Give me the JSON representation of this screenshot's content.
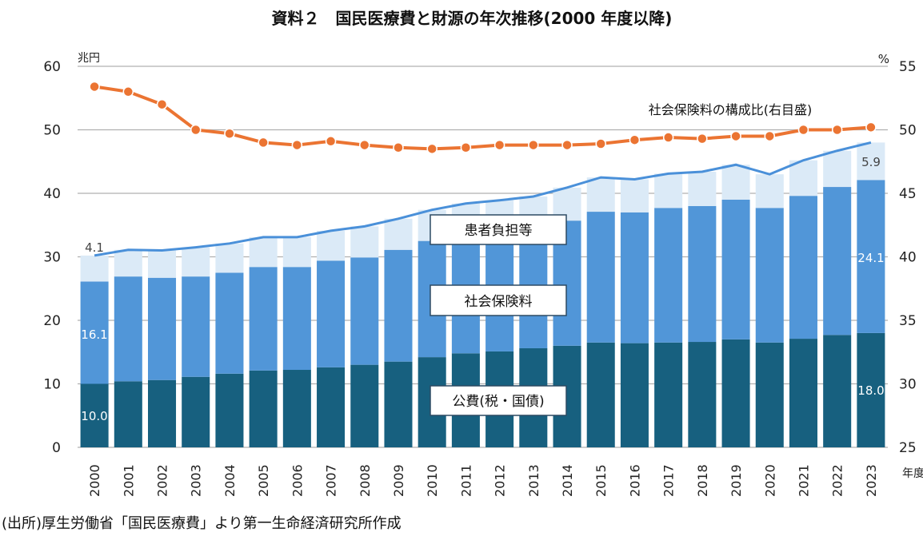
{
  "chart_data": {
    "type": "bar",
    "stacked": true,
    "title": "資料２　国民医療費と財源の年次推移(2000 年度以降)",
    "ylabel_left": "兆円",
    "ylabel_right": "%",
    "xlabel": "年度",
    "ylim_left": [
      0,
      60
    ],
    "ylim_right": [
      25,
      55
    ],
    "yticks_left": [
      "0",
      "10",
      "20",
      "30",
      "40",
      "50",
      "60"
    ],
    "yticks_right": [
      "25",
      "30",
      "35",
      "40",
      "45",
      "50",
      "55"
    ],
    "grid": true,
    "categories": [
      "2000",
      "2001",
      "2002",
      "2003",
      "2004",
      "2005",
      "2006",
      "2007",
      "2008",
      "2009",
      "2010",
      "2011",
      "2012",
      "2013",
      "2014",
      "2015",
      "2016",
      "2017",
      "2018",
      "2019",
      "2020",
      "2021",
      "2022",
      "2023"
    ],
    "series": [
      {
        "name": "公費(税・国債)",
        "color": "#17607f",
        "values": [
          10.0,
          10.4,
          10.6,
          11.1,
          11.6,
          12.1,
          12.2,
          12.6,
          13.0,
          13.5,
          14.2,
          14.8,
          15.1,
          15.6,
          16.0,
          16.5,
          16.4,
          16.5,
          16.6,
          17.0,
          16.5,
          17.1,
          17.7,
          18.0
        ]
      },
      {
        "name": "社会保険料",
        "color": "#5196d8",
        "values": [
          16.1,
          16.5,
          16.1,
          15.8,
          15.9,
          16.3,
          16.2,
          16.8,
          16.9,
          17.6,
          18.3,
          18.4,
          18.9,
          19.2,
          19.7,
          20.6,
          20.6,
          21.2,
          21.4,
          22.0,
          21.2,
          22.5,
          23.3,
          24.1
        ]
      },
      {
        "name": "患者負担等",
        "color": "#dbeaf7",
        "values": [
          4.1,
          4.2,
          4.3,
          4.6,
          4.6,
          4.7,
          4.7,
          4.7,
          4.9,
          4.9,
          4.9,
          5.2,
          4.9,
          4.7,
          5.2,
          5.4,
          5.2,
          5.4,
          5.4,
          5.5,
          5.3,
          5.6,
          5.7,
          5.9
        ]
      }
    ],
    "line_series": {
      "name": "社会保険料の構成比(右目盛)",
      "color": "#eb7432",
      "axis": "right",
      "values": [
        53.4,
        53.0,
        52.0,
        50.0,
        49.7,
        49.0,
        48.8,
        49.1,
        48.8,
        48.6,
        48.5,
        48.6,
        48.8,
        48.8,
        48.8,
        48.9,
        49.2,
        49.4,
        49.3,
        49.5,
        49.5,
        50.0,
        50.0,
        50.2
      ]
    },
    "total_line_color": "#4a90d9",
    "data_labels": {
      "first": {
        "patient": "4.1",
        "insurance": "16.1",
        "public": "10.0"
      },
      "last": {
        "patient": "5.9",
        "insurance": "24.1",
        "public": "18.0"
      }
    },
    "legend_boxes": {
      "patient": "患者負担等",
      "insurance": "社会保険料",
      "public": "公費(税・国債)"
    },
    "source": "(出所)厚生労働省「国民医療費」より第一生命経済研究所作成"
  }
}
